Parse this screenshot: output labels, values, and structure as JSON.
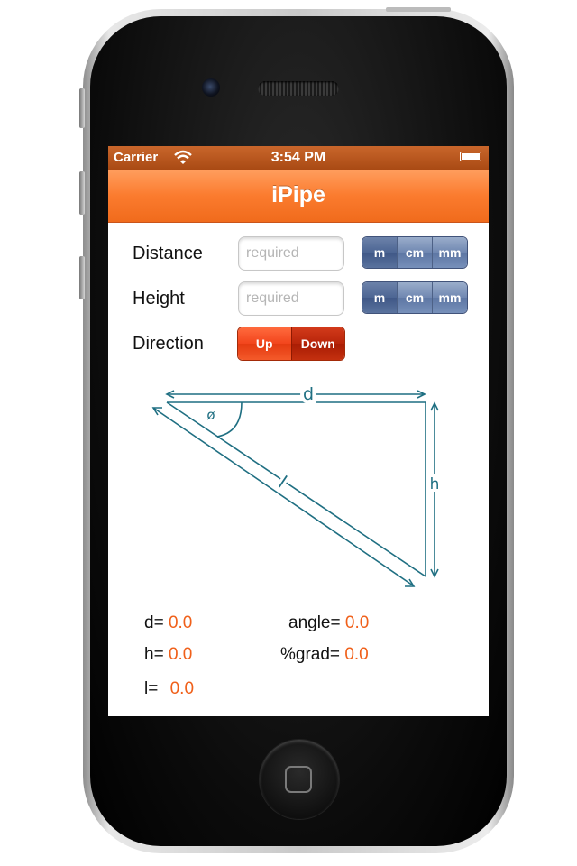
{
  "status_bar": {
    "carrier": "Carrier",
    "time": "3:54 PM"
  },
  "nav": {
    "title": "iPipe"
  },
  "distance": {
    "label": "Distance",
    "placeholder": "required",
    "units": [
      "m",
      "cm",
      "mm"
    ]
  },
  "height": {
    "label": "Height",
    "placeholder": "required",
    "units": [
      "m",
      "cm",
      "mm"
    ]
  },
  "direction": {
    "label": "Direction",
    "options": [
      "Up",
      "Down"
    ]
  },
  "diagram": {
    "d_label": "d",
    "h_label": "h",
    "l_label": "l",
    "angle_label": "ø"
  },
  "results": {
    "d": {
      "label": "d=",
      "value": "0.0"
    },
    "h": {
      "label": "h=",
      "value": "0.0"
    },
    "l": {
      "label": "l=",
      "value": "0.0"
    },
    "angle": {
      "label": "angle=",
      "value": "0.0"
    },
    "grad": {
      "label": "%grad=",
      "value": "0.0"
    }
  },
  "colors": {
    "accent": "#f0601a",
    "nav": "#fb7b2e",
    "segment_blue": "#6f87b1",
    "diagram_teal": "#1f6f82"
  },
  "icons": {
    "wifi": "wifi-icon",
    "battery": "battery-icon"
  }
}
